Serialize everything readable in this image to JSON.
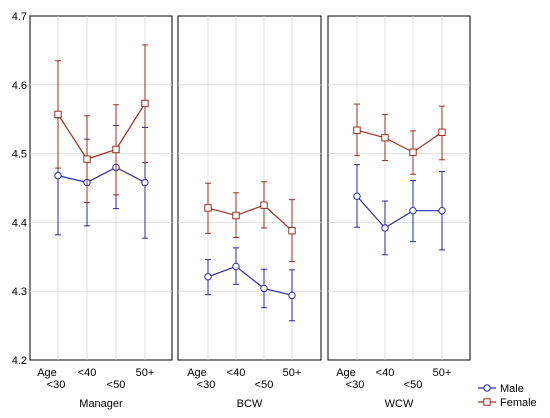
{
  "chart_data": {
    "type": "line",
    "ylim": [
      4.2,
      4.7
    ],
    "y_ticks": [
      "4.2",
      "4.3",
      "4.4",
      "4.5",
      "4.6",
      "4.7"
    ],
    "y_tick_values": [
      4.2,
      4.3,
      4.4,
      4.5,
      4.6,
      4.7
    ],
    "grid": true,
    "legend_position": "bottom-right",
    "x_tick_labels": [
      {
        "line1": "Age",
        "line2": "<30"
      },
      {
        "line1": "<40",
        "line2": ""
      },
      {
        "line1": "",
        "line2": "<50"
      },
      {
        "line1": "50+",
        "line2": ""
      }
    ],
    "legend": [
      {
        "name": "Male",
        "color": "#2a2aa8",
        "marker": "circle"
      },
      {
        "name": "Female",
        "color": "#9c2f1f",
        "marker": "square"
      }
    ],
    "panels": [
      {
        "label": "Manager",
        "series": [
          {
            "name": "Male",
            "values": [
              4.468,
              4.458,
              4.48,
              4.458
            ],
            "err_low": [
              4.382,
              4.395,
              4.42,
              4.377
            ],
            "err_high": [
              4.552,
              4.521,
              4.541,
              4.538
            ]
          },
          {
            "name": "Female",
            "values": [
              4.557,
              4.492,
              4.506,
              4.573
            ],
            "err_low": [
              4.479,
              4.429,
              4.44,
              4.487
            ],
            "err_high": [
              4.635,
              4.555,
              4.571,
              4.658
            ]
          }
        ]
      },
      {
        "label": "BCW",
        "series": [
          {
            "name": "Male",
            "values": [
              4.321,
              4.336,
              4.304,
              4.294
            ],
            "err_low": [
              4.295,
              4.31,
              4.276,
              4.257
            ],
            "err_high": [
              4.346,
              4.363,
              4.332,
              4.331
            ]
          },
          {
            "name": "Female",
            "values": [
              4.421,
              4.41,
              4.425,
              4.388
            ],
            "err_low": [
              4.384,
              4.378,
              4.392,
              4.343
            ],
            "err_high": [
              4.457,
              4.443,
              4.459,
              4.433
            ]
          }
        ]
      },
      {
        "label": "WCW",
        "series": [
          {
            "name": "Male",
            "values": [
              4.438,
              4.392,
              4.417,
              4.417
            ],
            "err_low": [
              4.393,
              4.353,
              4.372,
              4.36
            ],
            "err_high": [
              4.484,
              4.431,
              4.461,
              4.474
            ]
          },
          {
            "name": "Female",
            "values": [
              4.534,
              4.523,
              4.502,
              4.531
            ],
            "err_low": [
              4.497,
              4.49,
              4.47,
              4.491
            ],
            "err_high": [
              4.572,
              4.557,
              4.533,
              4.569
            ]
          }
        ]
      }
    ]
  }
}
